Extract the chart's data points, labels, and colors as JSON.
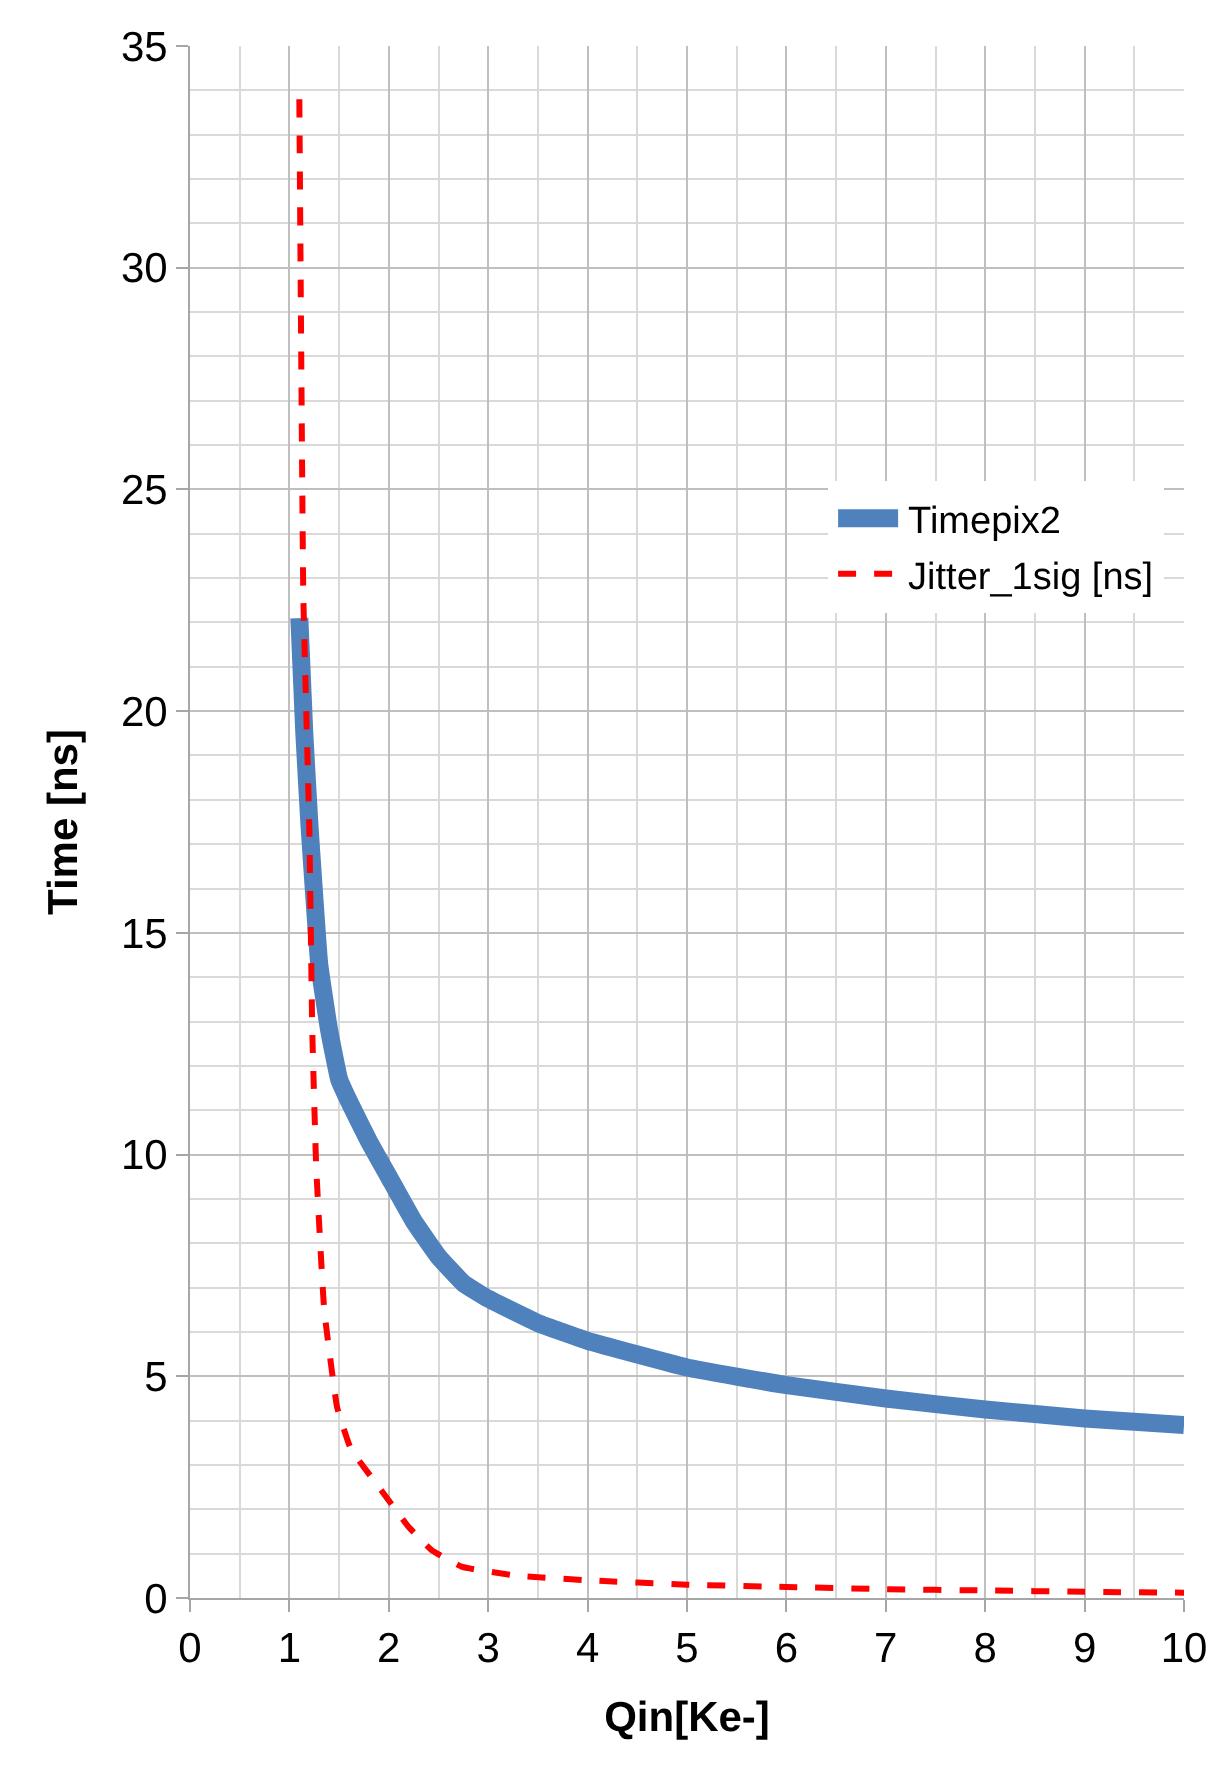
{
  "chart_data": {
    "type": "line",
    "xlabel": "Qin[Ke-]",
    "ylabel": "Time [ns]",
    "xlim": [
      0,
      10
    ],
    "ylim": [
      0,
      35
    ],
    "xticks": [
      0,
      1,
      2,
      3,
      4,
      5,
      6,
      7,
      8,
      9,
      10
    ],
    "yticks": [
      0,
      5,
      10,
      15,
      20,
      25,
      30,
      35
    ],
    "grid": true,
    "legend": "top right",
    "marker": "none",
    "series": [
      {
        "name": "Timepix2",
        "color": "#4f81bd",
        "line_style": "solid",
        "x": [
          1.1,
          1.15,
          1.2,
          1.3,
          1.4,
          1.5,
          1.6,
          1.8,
          2.0,
          2.25,
          2.5,
          2.75,
          3.0,
          3.5,
          4,
          5,
          6,
          7,
          8,
          9,
          10
        ],
        "values": [
          22.1,
          19.5,
          17.5,
          14.3,
          12.8,
          11.7,
          11.2,
          10.3,
          9.5,
          8.5,
          7.7,
          7.1,
          6.75,
          6.2,
          5.8,
          5.2,
          4.8,
          4.5,
          4.25,
          4.05,
          3.9
        ]
      },
      {
        "name": "Jitter_1sig [ns]",
        "color": "#ff0000",
        "line_style": "dashed",
        "x": [
          1.1,
          1.14,
          1.2,
          1.23,
          1.27,
          1.35,
          1.48,
          1.62,
          1.8,
          2.0,
          2.2,
          2.43,
          2.74,
          3.3,
          4,
          5,
          6,
          7,
          8,
          9,
          10
        ],
        "values": [
          33.8,
          22.6,
          17.4,
          12.8,
          9.7,
          6.5,
          4.3,
          3.35,
          2.8,
          2.2,
          1.6,
          1.08,
          0.7,
          0.5,
          0.4,
          0.3,
          0.25,
          0.2,
          0.17,
          0.14,
          0.12
        ]
      }
    ]
  }
}
